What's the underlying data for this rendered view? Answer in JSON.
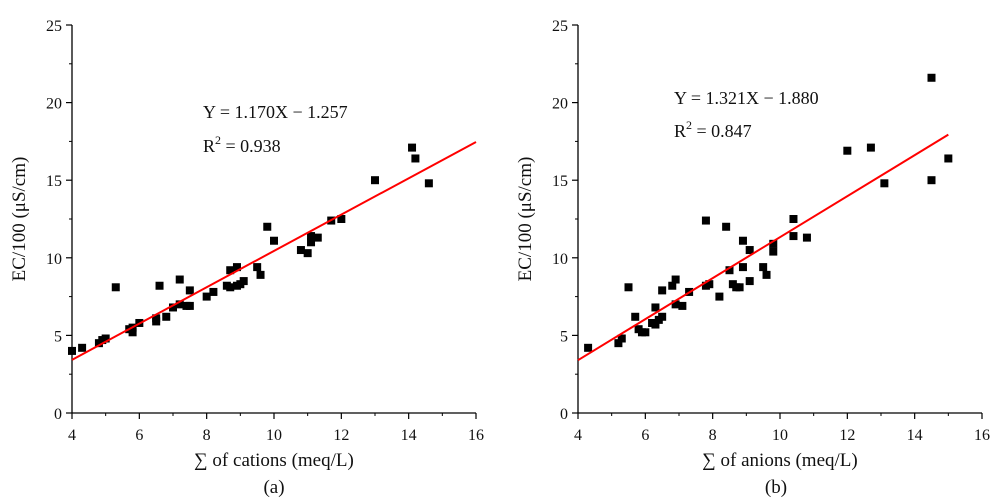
{
  "chart_data": [
    {
      "type": "scatter",
      "panel_label": "(a)",
      "xlabel": "∑ of cations (meq/L)",
      "ylabel": "EC/100 (μS/cm)",
      "xlim": [
        4,
        16
      ],
      "ylim": [
        0,
        25
      ],
      "xticks": [
        4,
        6,
        8,
        10,
        12,
        14,
        16
      ],
      "yticks": [
        0,
        5,
        10,
        15,
        20,
        25
      ],
      "equation": "Y = 1.170X − 1.257",
      "r2_label": "R",
      "r2_sup": "2",
      "r2_value": " = 0.938",
      "fit": {
        "slope": 1.17,
        "intercept": -1.257,
        "x_range": [
          4,
          16
        ],
        "color": "#ff0000"
      },
      "marker_color": "#000000",
      "points": [
        [
          4.0,
          4.0
        ],
        [
          4.3,
          4.2
        ],
        [
          4.8,
          4.5
        ],
        [
          4.9,
          4.7
        ],
        [
          5.0,
          4.8
        ],
        [
          5.3,
          8.1
        ],
        [
          5.7,
          5.4
        ],
        [
          5.8,
          5.2
        ],
        [
          5.8,
          5.5
        ],
        [
          6.0,
          5.8
        ],
        [
          6.5,
          6.1
        ],
        [
          6.5,
          5.9
        ],
        [
          6.6,
          8.2
        ],
        [
          6.8,
          6.2
        ],
        [
          7.0,
          6.8
        ],
        [
          7.2,
          8.6
        ],
        [
          7.2,
          7.0
        ],
        [
          7.4,
          6.9
        ],
        [
          7.5,
          6.9
        ],
        [
          7.5,
          7.9
        ],
        [
          8.0,
          7.5
        ],
        [
          8.2,
          7.8
        ],
        [
          8.6,
          8.2
        ],
        [
          8.7,
          8.1
        ],
        [
          8.7,
          9.2
        ],
        [
          8.9,
          9.4
        ],
        [
          8.9,
          8.2
        ],
        [
          9.0,
          8.3
        ],
        [
          9.1,
          8.5
        ],
        [
          9.5,
          9.4
        ],
        [
          9.6,
          8.9
        ],
        [
          9.8,
          12.0
        ],
        [
          10.0,
          11.1
        ],
        [
          10.8,
          10.5
        ],
        [
          11.0,
          10.3
        ],
        [
          11.1,
          11.4
        ],
        [
          11.1,
          11.0
        ],
        [
          11.3,
          11.3
        ],
        [
          11.7,
          12.4
        ],
        [
          12.0,
          12.5
        ],
        [
          13.0,
          15.0
        ],
        [
          14.1,
          17.1
        ],
        [
          14.2,
          16.4
        ],
        [
          14.6,
          14.8
        ]
      ]
    },
    {
      "type": "scatter",
      "panel_label": "(b)",
      "xlabel": "∑ of anions (meq/L)",
      "ylabel": "EC/100 (μS/cm)",
      "xlim": [
        4,
        16
      ],
      "ylim": [
        0,
        25
      ],
      "xticks": [
        4,
        6,
        8,
        10,
        12,
        14,
        16
      ],
      "yticks": [
        0,
        5,
        10,
        15,
        20,
        25
      ],
      "equation": "Y = 1.321X − 1.880",
      "r2_label": "R",
      "r2_sup": "2",
      "r2_value": " = 0.847",
      "fit": {
        "slope": 1.321,
        "intercept": -1.88,
        "x_range": [
          4,
          15
        ],
        "color": "#ff0000"
      },
      "marker_color": "#000000",
      "points": [
        [
          4.3,
          4.2
        ],
        [
          5.2,
          4.5
        ],
        [
          5.3,
          4.8
        ],
        [
          5.5,
          8.1
        ],
        [
          5.7,
          6.2
        ],
        [
          5.8,
          5.4
        ],
        [
          5.9,
          5.2
        ],
        [
          6.0,
          5.2
        ],
        [
          6.2,
          5.8
        ],
        [
          6.3,
          6.8
        ],
        [
          6.3,
          5.7
        ],
        [
          6.4,
          6.0
        ],
        [
          6.5,
          7.9
        ],
        [
          6.5,
          6.2
        ],
        [
          6.8,
          8.2
        ],
        [
          6.9,
          8.6
        ],
        [
          6.9,
          7.0
        ],
        [
          7.1,
          6.9
        ],
        [
          7.3,
          7.8
        ],
        [
          7.8,
          8.2
        ],
        [
          7.8,
          12.4
        ],
        [
          7.9,
          8.3
        ],
        [
          8.2,
          7.5
        ],
        [
          8.4,
          12.0
        ],
        [
          8.5,
          9.2
        ],
        [
          8.6,
          8.3
        ],
        [
          8.7,
          8.1
        ],
        [
          8.8,
          8.1
        ],
        [
          8.9,
          11.1
        ],
        [
          8.9,
          9.4
        ],
        [
          9.1,
          8.5
        ],
        [
          9.1,
          10.5
        ],
        [
          9.5,
          9.4
        ],
        [
          9.6,
          8.9
        ],
        [
          9.8,
          10.9
        ],
        [
          9.8,
          10.4
        ],
        [
          10.4,
          11.4
        ],
        [
          10.4,
          12.5
        ],
        [
          10.8,
          11.3
        ],
        [
          12.0,
          16.9
        ],
        [
          12.7,
          17.1
        ],
        [
          13.1,
          14.8
        ],
        [
          14.5,
          21.6
        ],
        [
          14.5,
          15.0
        ],
        [
          15.0,
          16.4
        ]
      ]
    }
  ]
}
